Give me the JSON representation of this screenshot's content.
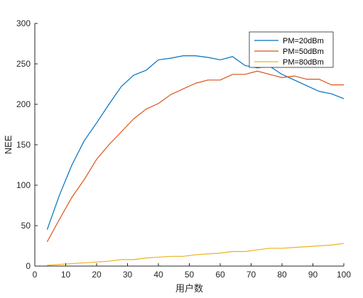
{
  "chart_data": {
    "type": "line",
    "xlabel": "用户数",
    "ylabel": "NEE",
    "xlim": [
      0,
      100
    ],
    "ylim": [
      0,
      300
    ],
    "xticks": [
      0,
      10,
      20,
      30,
      40,
      50,
      60,
      70,
      80,
      90,
      100
    ],
    "yticks": [
      0,
      50,
      100,
      150,
      200,
      250,
      300
    ],
    "grid": false,
    "legend_position": "top-right",
    "series": [
      {
        "name": "PM=20dBm",
        "color": "#0072BD",
        "x": [
          4,
          8,
          12,
          16,
          20,
          24,
          28,
          32,
          36,
          40,
          44,
          48,
          52,
          56,
          60,
          64,
          68,
          72,
          76,
          80,
          84,
          88,
          92,
          96,
          100
        ],
        "y": [
          45,
          88,
          125,
          155,
          177,
          200,
          222,
          236,
          242,
          255,
          257,
          260,
          260,
          258,
          255,
          259,
          248,
          245,
          247,
          237,
          230,
          223,
          216,
          213,
          207
        ]
      },
      {
        "name": "PM=50dBm",
        "color": "#D95319",
        "x": [
          4,
          8,
          12,
          16,
          20,
          24,
          28,
          32,
          36,
          40,
          44,
          48,
          52,
          56,
          60,
          64,
          68,
          72,
          76,
          80,
          84,
          88,
          92,
          96,
          100
        ],
        "y": [
          30,
          58,
          85,
          107,
          132,
          150,
          166,
          182,
          194,
          201,
          212,
          219,
          226,
          230,
          230,
          237,
          237,
          241,
          237,
          233,
          235,
          231,
          231,
          224,
          224
        ]
      },
      {
        "name": "PM=80dBm",
        "color": "#EDB120",
        "x": [
          4,
          8,
          12,
          16,
          20,
          24,
          28,
          32,
          36,
          40,
          44,
          48,
          52,
          56,
          60,
          64,
          68,
          72,
          76,
          80,
          84,
          88,
          92,
          96,
          100
        ],
        "y": [
          1,
          2,
          3,
          4,
          5,
          6,
          8,
          8,
          10,
          11,
          12,
          12,
          14,
          15,
          16,
          18,
          18,
          20,
          22,
          22,
          23,
          24,
          25,
          26,
          28
        ]
      }
    ]
  }
}
